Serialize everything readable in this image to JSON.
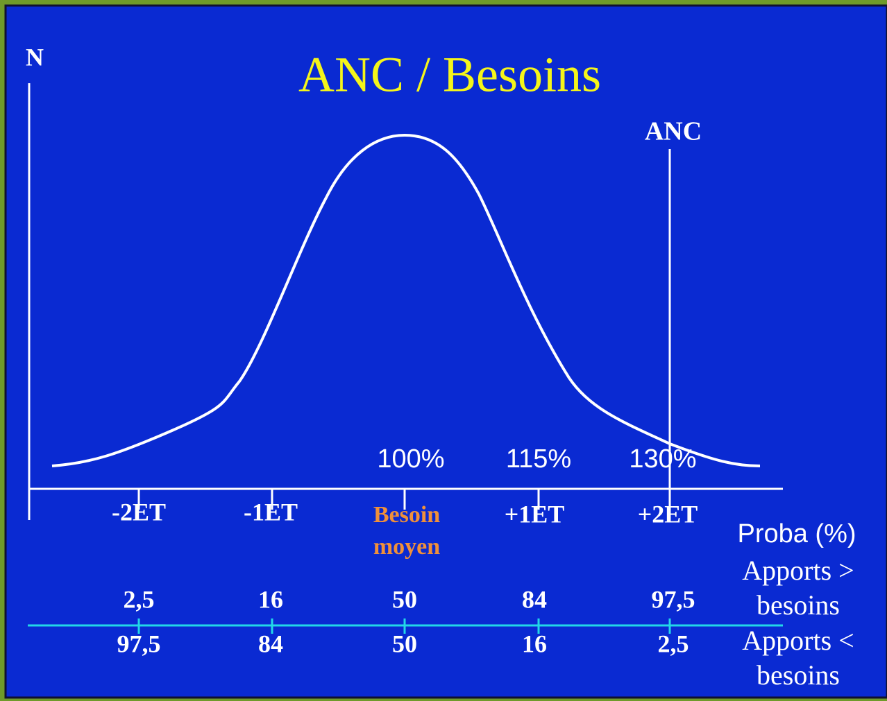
{
  "title": "ANC / Besoins",
  "y_axis_label": "N",
  "anc_label": "ANC",
  "percent_labels": [
    "100%",
    "115%",
    "130%"
  ],
  "sd_labels": [
    "-2ET",
    "-1ET",
    "+1ET",
    "+2ET"
  ],
  "mean_label": [
    "Besoin",
    "moyen"
  ],
  "proba_label": "Proba (%)",
  "above_label": [
    "Apports >",
    "besoins"
  ],
  "below_label": [
    "Apports <",
    "besoins"
  ],
  "above_values": [
    "2,5",
    "16",
    "50",
    "84",
    "97,5"
  ],
  "below_values": [
    "97,5",
    "84",
    "50",
    "16",
    "2,5"
  ]
}
